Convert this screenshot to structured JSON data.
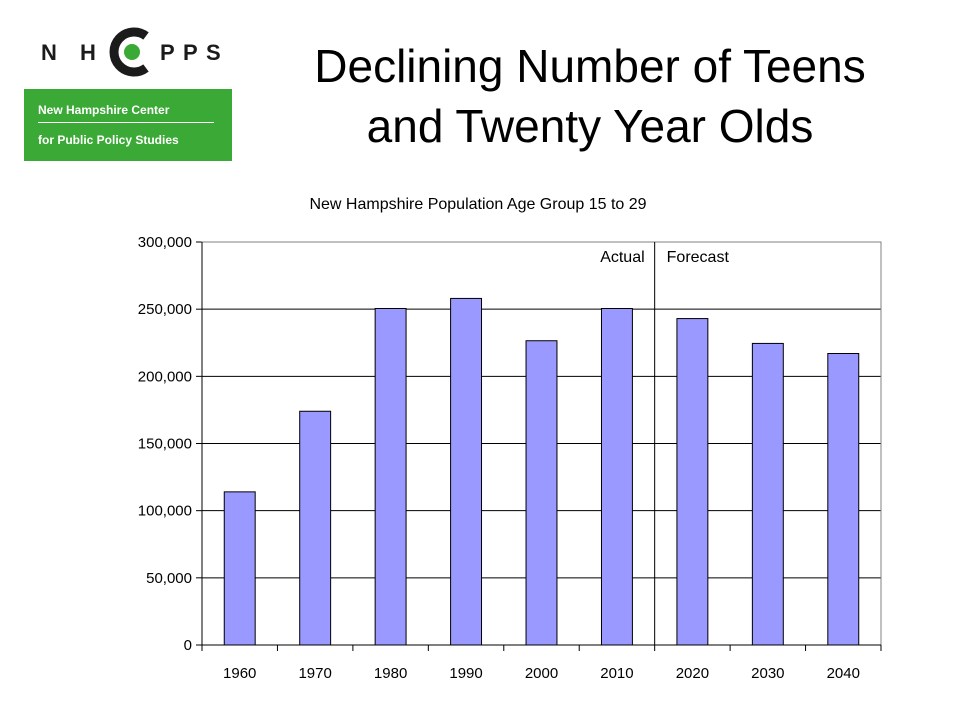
{
  "logo": {
    "letters": [
      "N",
      "H",
      "C",
      "P",
      "P",
      "S"
    ],
    "line1": "New Hampshire Center",
    "line2": "for Public Policy Studies",
    "green": "#3aa935"
  },
  "slide": {
    "title_line1": "Declining Number of Teens",
    "title_line2": "and Twenty Year Olds"
  },
  "chart_data": {
    "type": "bar",
    "title": "New Hampshire Population Age Group  15 to 29",
    "xlabel": "",
    "ylabel": "",
    "categories": [
      "1960",
      "1970",
      "1980",
      "1990",
      "2000",
      "2010",
      "2020",
      "2030",
      "2040"
    ],
    "values": [
      114000,
      174000,
      250500,
      258000,
      226500,
      250500,
      243000,
      224500,
      217000
    ],
    "ylim": [
      0,
      300000
    ],
    "yticks": [
      0,
      50000,
      100000,
      150000,
      200000,
      250000,
      300000
    ],
    "ytick_labels": [
      "0",
      "50,000",
      "100,000",
      "150,000",
      "200,000",
      "250,000",
      "300,000"
    ],
    "grid": true,
    "bar_color": "#9999ff",
    "annotations": {
      "actual": "Actual",
      "forecast": "Forecast",
      "divider_between": [
        "2010",
        "2020"
      ]
    }
  }
}
